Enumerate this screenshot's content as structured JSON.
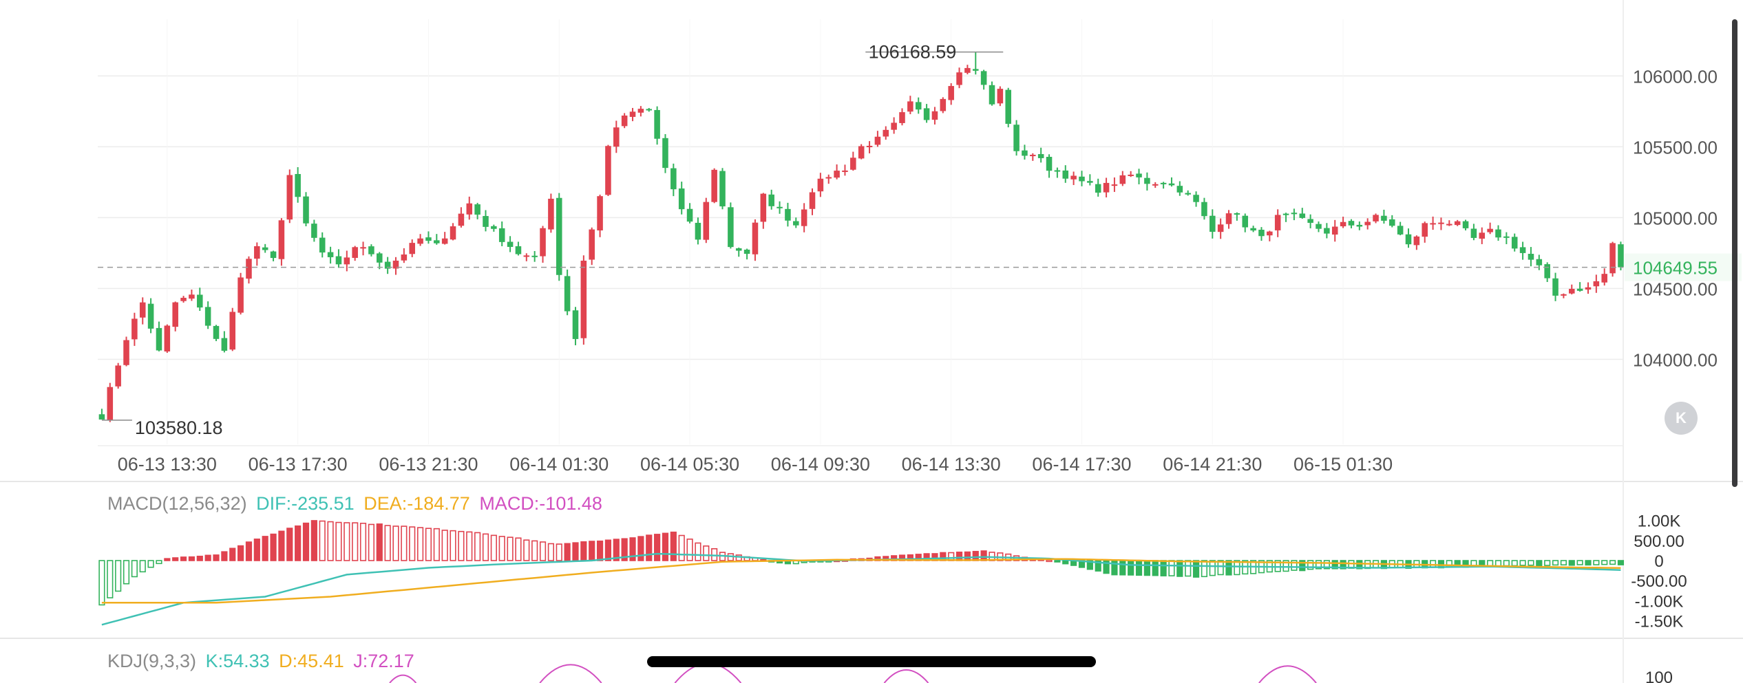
{
  "colors": {
    "up": "#e0434f",
    "down": "#33b35c",
    "grid": "#ececec",
    "axis_text": "#555555",
    "dif": "#3fc1b4",
    "dea": "#f0ad1f",
    "macd": "#d24fc1",
    "k_line": "#3fc1b4",
    "d_line": "#f0ad1f",
    "j_line": "#d24fc1",
    "last_price": "#33b35c"
  },
  "price_panel": {
    "high_label": "106168.59",
    "low_label": "103580.18",
    "last_price_label": "104649.55"
  },
  "macd_legend": {
    "name": "MACD(12,56,32)",
    "dif": "DIF:-235.51",
    "dea": "DEA:-184.77",
    "macd": "MACD:-101.48"
  },
  "kdj_legend": {
    "name": "KDJ(9,3,3)",
    "k": "K:54.33",
    "d": "D:45.41",
    "j": "J:72.17"
  },
  "controls": {
    "k_button_label": "K"
  },
  "chart_data": [
    {
      "type": "candlestick",
      "title": "",
      "x_ticks": [
        "06-13 13:30",
        "06-13 17:30",
        "06-13 21:30",
        "06-14 01:30",
        "06-14 05:30",
        "06-14 09:30",
        "06-14 13:30",
        "06-14 17:30",
        "06-14 21:30",
        "06-15 01:30"
      ],
      "y_ticks": [
        "106000.00",
        "105500.00",
        "105000.00",
        "104500.00",
        "104000.00"
      ],
      "y_tick_values": [
        106000,
        105500,
        105000,
        104500,
        104000
      ],
      "ylim": [
        103400,
        106400
      ],
      "max_price": 106168.59,
      "min_price": 103580.18,
      "last_price": 104649.55,
      "candles_per_label": 16,
      "waypoints": [
        [
          0,
          103600
        ],
        [
          3,
          104150
        ],
        [
          5,
          104400
        ],
        [
          7,
          104050
        ],
        [
          9,
          104400
        ],
        [
          11,
          104450
        ],
        [
          13,
          104250
        ],
        [
          15,
          104050
        ],
        [
          17,
          104600
        ],
        [
          19,
          104800
        ],
        [
          21,
          104700
        ],
        [
          23,
          105300
        ],
        [
          25,
          104950
        ],
        [
          27,
          104750
        ],
        [
          29,
          104650
        ],
        [
          31,
          104800
        ],
        [
          33,
          104750
        ],
        [
          35,
          104650
        ],
        [
          37,
          104750
        ],
        [
          39,
          104850
        ],
        [
          41,
          104800
        ],
        [
          43,
          104950
        ],
        [
          45,
          105100
        ],
        [
          47,
          104950
        ],
        [
          49,
          104850
        ],
        [
          51,
          104750
        ],
        [
          53,
          104700
        ],
        [
          55,
          105150
        ],
        [
          56,
          104600
        ],
        [
          57,
          104350
        ],
        [
          58,
          104150
        ],
        [
          59,
          104700
        ],
        [
          61,
          105150
        ],
        [
          62,
          105500
        ],
        [
          63,
          105650
        ],
        [
          65,
          105750
        ],
        [
          67,
          105750
        ],
        [
          69,
          105350
        ],
        [
          71,
          105050
        ],
        [
          73,
          104850
        ],
        [
          75,
          105350
        ],
        [
          77,
          104800
        ],
        [
          79,
          104750
        ],
        [
          81,
          105150
        ],
        [
          83,
          105050
        ],
        [
          85,
          104950
        ],
        [
          87,
          105200
        ],
        [
          89,
          105300
        ],
        [
          91,
          105350
        ],
        [
          93,
          105500
        ],
        [
          95,
          105550
        ],
        [
          97,
          105650
        ],
        [
          99,
          105800
        ],
        [
          101,
          105700
        ],
        [
          103,
          105850
        ],
        [
          105,
          106050
        ],
        [
          107,
          106050
        ],
        [
          109,
          105800
        ],
        [
          110,
          105900
        ],
        [
          112,
          105450
        ],
        [
          114,
          105450
        ],
        [
          116,
          105350
        ],
        [
          118,
          105300
        ],
        [
          120,
          105250
        ],
        [
          122,
          105200
        ],
        [
          124,
          105250
        ],
        [
          126,
          105300
        ],
        [
          128,
          105250
        ],
        [
          130,
          105250
        ],
        [
          132,
          105200
        ],
        [
          134,
          105100
        ],
        [
          136,
          104900
        ],
        [
          138,
          105050
        ],
        [
          140,
          104950
        ],
        [
          142,
          104850
        ],
        [
          144,
          105000
        ],
        [
          146,
          105000
        ],
        [
          148,
          104950
        ],
        [
          150,
          104900
        ],
        [
          152,
          104950
        ],
        [
          154,
          104950
        ],
        [
          156,
          105000
        ],
        [
          158,
          104950
        ],
        [
          160,
          104800
        ],
        [
          162,
          104950
        ],
        [
          164,
          104980
        ],
        [
          166,
          104950
        ],
        [
          168,
          104850
        ],
        [
          170,
          104900
        ],
        [
          172,
          104850
        ],
        [
          174,
          104750
        ],
        [
          176,
          104650
        ],
        [
          178,
          104450
        ],
        [
          180,
          104500
        ],
        [
          182,
          104500
        ],
        [
          184,
          104600
        ],
        [
          185,
          104820
        ],
        [
          186,
          104649.55
        ]
      ]
    },
    {
      "type": "bar",
      "title": "MACD(12,56,32)",
      "y_ticks": [
        "1.00K",
        "500.00",
        "0",
        "-500.00",
        "-1.00K",
        "-1.50K"
      ],
      "y_tick_values": [
        1000,
        500,
        0,
        -500,
        -1000,
        -1500
      ],
      "ylim": [
        -1800,
        1200
      ],
      "series": [
        {
          "name": "MACD",
          "waypoints": [
            [
              0,
              -1100
            ],
            [
              4,
              -400
            ],
            [
              8,
              50
            ],
            [
              14,
              150
            ],
            [
              20,
              600
            ],
            [
              26,
              1000
            ],
            [
              34,
              900
            ],
            [
              46,
              700
            ],
            [
              56,
              400
            ],
            [
              64,
              550
            ],
            [
              70,
              700
            ],
            [
              76,
              200
            ],
            [
              84,
              -80
            ],
            [
              96,
              100
            ],
            [
              108,
              250
            ],
            [
              116,
              0
            ],
            [
              124,
              -350
            ],
            [
              134,
              -400
            ],
            [
              142,
              -300
            ],
            [
              150,
              -200
            ],
            [
              160,
              -180
            ],
            [
              170,
              -150
            ],
            [
              178,
              -110
            ],
            [
              184,
              -100
            ],
            [
              186,
              -101.48
            ]
          ]
        },
        {
          "name": "DIF",
          "waypoints": [
            [
              0,
              -1600
            ],
            [
              10,
              -1050
            ],
            [
              20,
              -900
            ],
            [
              30,
              -350
            ],
            [
              40,
              -180
            ],
            [
              50,
              -80
            ],
            [
              60,
              0
            ],
            [
              68,
              170
            ],
            [
              76,
              120
            ],
            [
              86,
              -10
            ],
            [
              100,
              40
            ],
            [
              108,
              90
            ],
            [
              116,
              50
            ],
            [
              126,
              -110
            ],
            [
              140,
              -150
            ],
            [
              156,
              -180
            ],
            [
              170,
              -150
            ],
            [
              180,
              -200
            ],
            [
              186,
              -235.51
            ]
          ]
        },
        {
          "name": "DEA",
          "waypoints": [
            [
              0,
              -1050
            ],
            [
              14,
              -1050
            ],
            [
              28,
              -900
            ],
            [
              44,
              -600
            ],
            [
              60,
              -300
            ],
            [
              76,
              -30
            ],
            [
              90,
              20
            ],
            [
              106,
              10
            ],
            [
              118,
              40
            ],
            [
              132,
              -20
            ],
            [
              150,
              -60
            ],
            [
              166,
              -120
            ],
            [
              180,
              -170
            ],
            [
              186,
              -184.77
            ]
          ]
        }
      ]
    },
    {
      "type": "line",
      "title": "KDJ(9,3,3)",
      "y_ticks": [
        "100"
      ],
      "y_tick_values": [
        100
      ],
      "series": [
        {
          "name": "K",
          "last": 54.33
        },
        {
          "name": "D",
          "last": 45.41
        },
        {
          "name": "J",
          "last": 72.17
        }
      ]
    }
  ]
}
